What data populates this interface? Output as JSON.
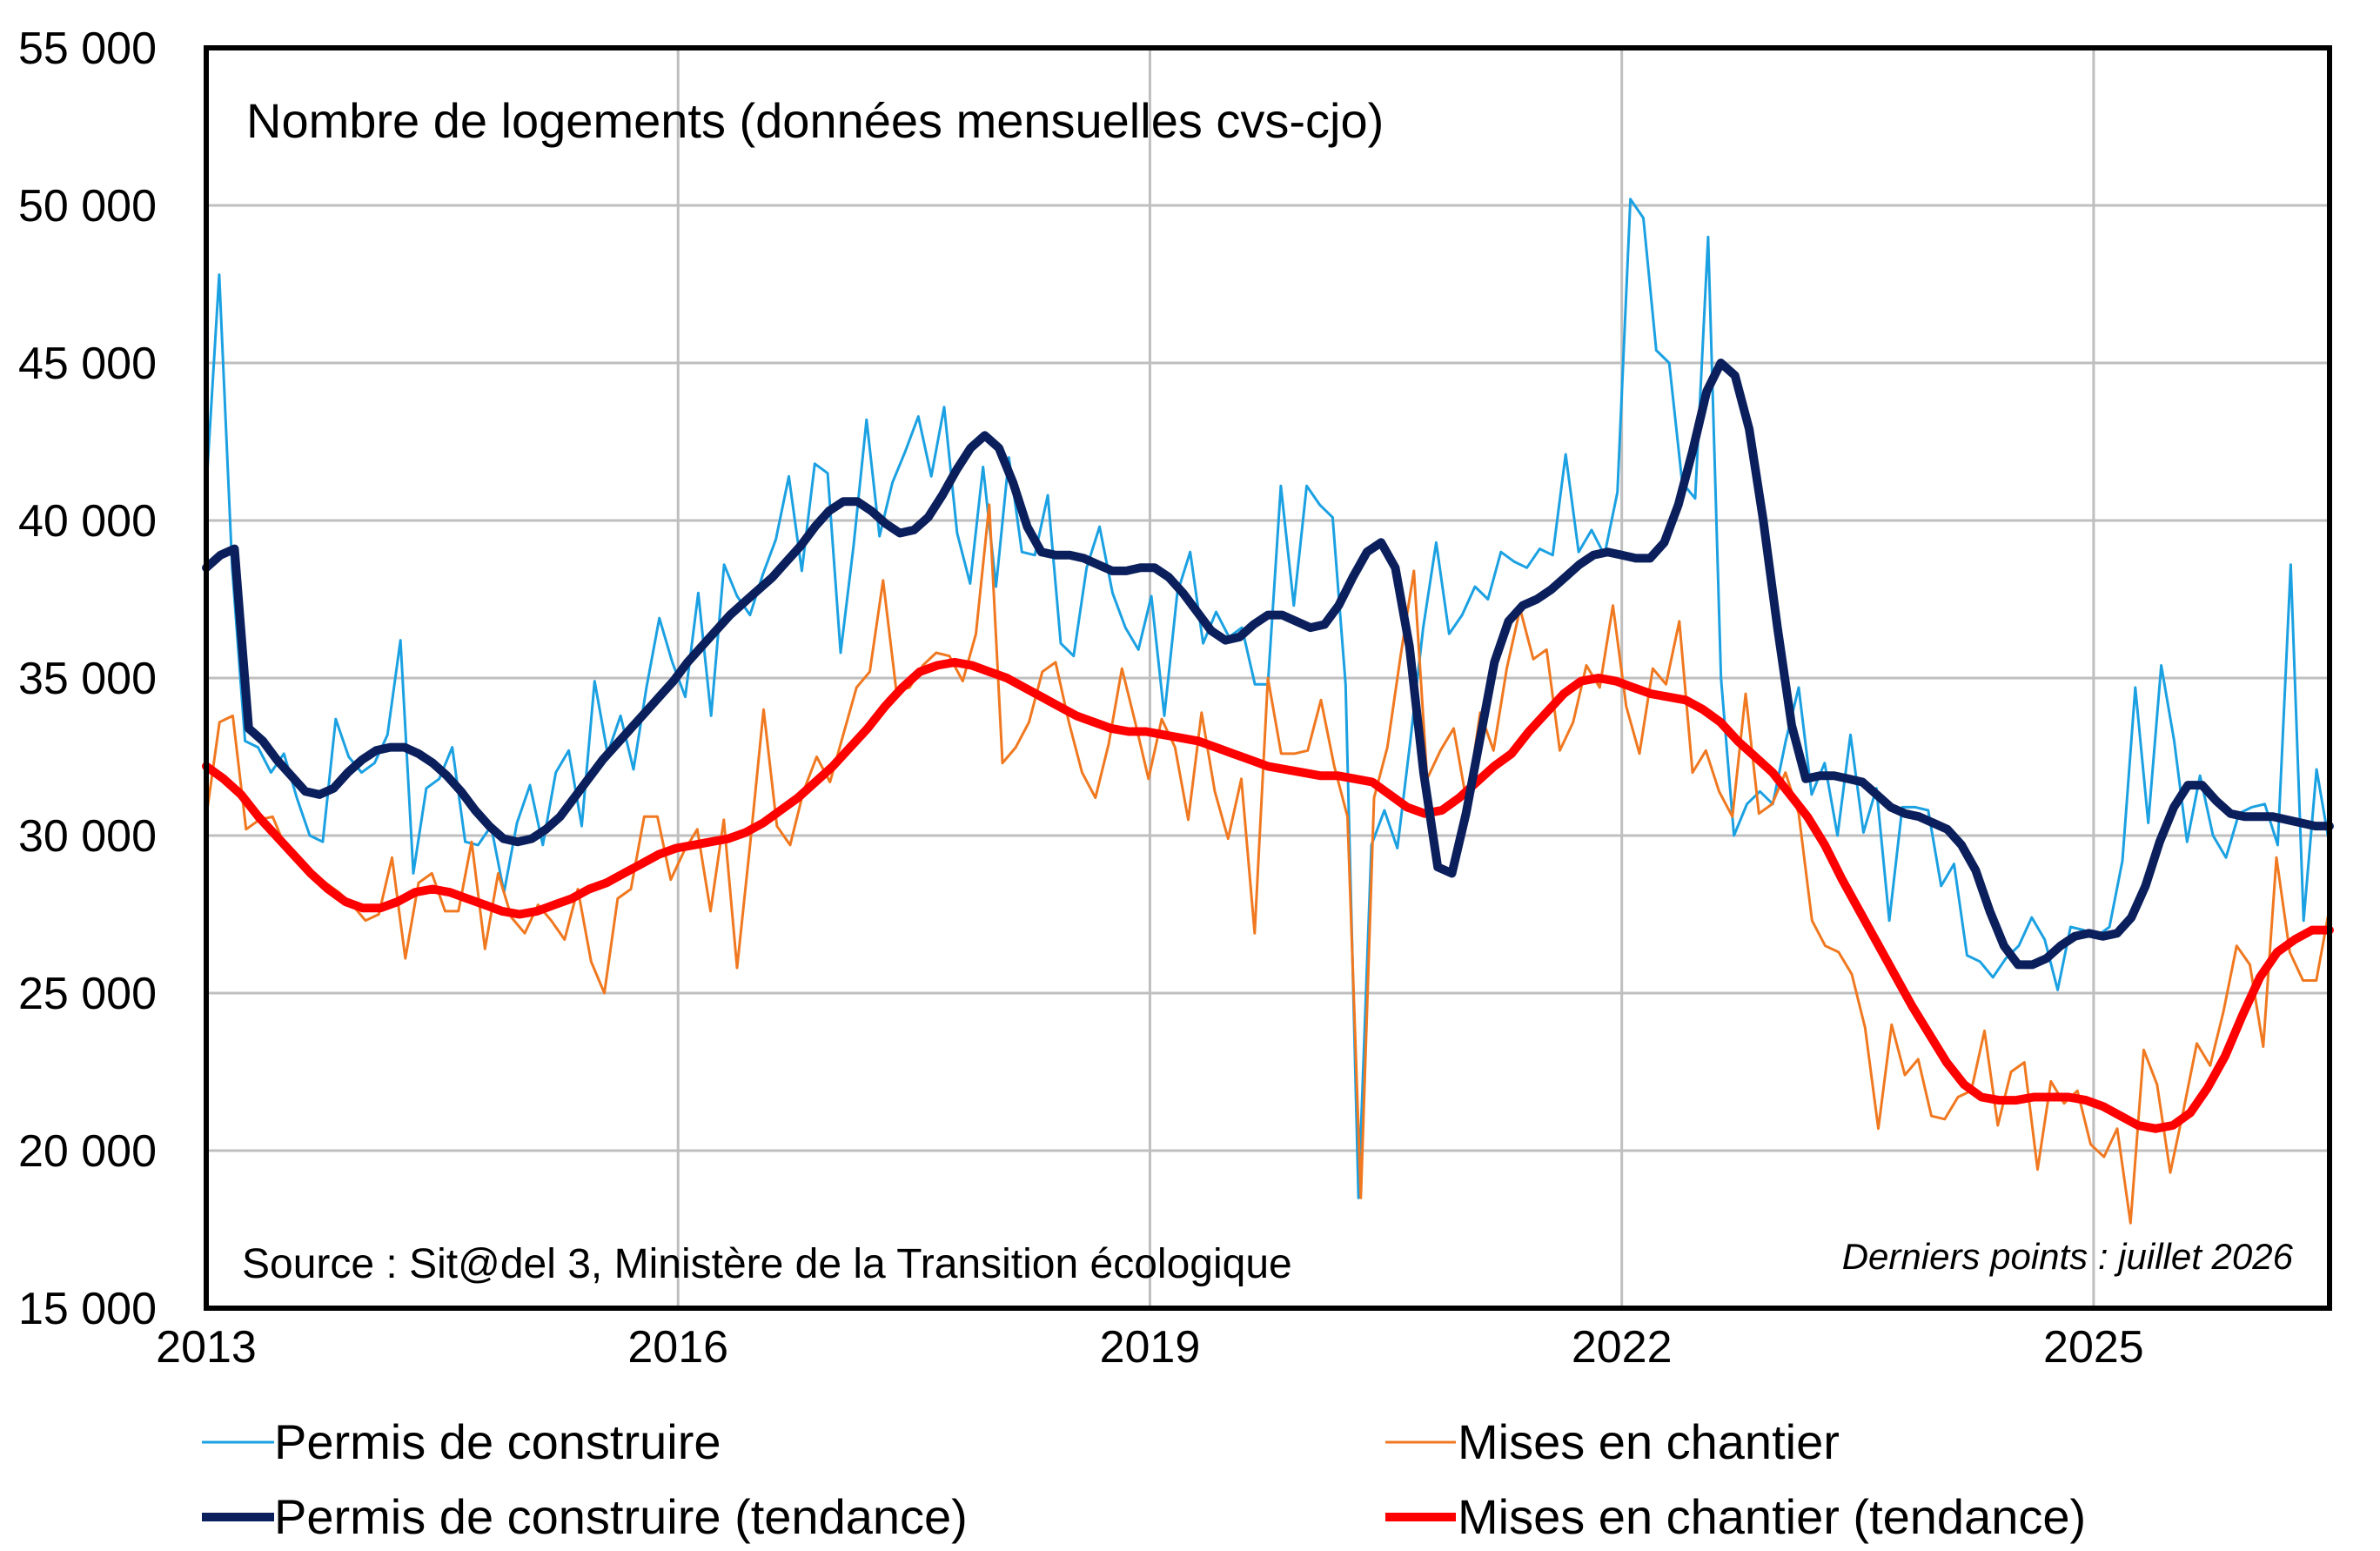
{
  "chart_data": {
    "type": "line",
    "title": "Nombre de logements (données mensuelles cvs-cjo)",
    "source": "Source : Sit@del 3, Ministère de la Transition écologique",
    "note": "Derniers points : juillet  2026",
    "y_ticks": [
      "15 000",
      "20 000",
      "25 000",
      "30 000",
      "35 000",
      "40 000",
      "45 000",
      "50 000",
      "55 000"
    ],
    "x_ticks": [
      "2013",
      "2016",
      "2019",
      "2022",
      "2025"
    ],
    "ylim": [
      15000,
      55000
    ],
    "x_start": "2013-01",
    "x_end": "2026-07",
    "grid": true,
    "legend_position": "bottom",
    "colors": {
      "permis": "#1ba1e2",
      "mises": "#f07820",
      "permis_tendance": "#0b1f5c",
      "mises_tendance": "#ff0000"
    },
    "series": [
      {
        "name": "Permis de construire",
        "key": "permis",
        "values": [
          41000,
          47800,
          38500,
          33000,
          32800,
          32000,
          32600,
          31200,
          30000,
          29800,
          33700,
          32500,
          32000,
          32300,
          33200,
          36200,
          28800,
          31500,
          31800,
          32800,
          29800,
          29700,
          30300,
          28200,
          30400,
          31600,
          29700,
          32000,
          32700,
          30300,
          34900,
          32600,
          33800,
          32100,
          34700,
          36900,
          35500,
          34400,
          37700,
          33800,
          38600,
          37600,
          37000,
          38300,
          39400,
          41400,
          38400,
          41800,
          41500,
          35800,
          39200,
          43200,
          39500,
          41200,
          42200,
          43300,
          41400,
          43600,
          39600,
          38000,
          41700,
          37900,
          42000,
          39000,
          38900,
          40800,
          36100,
          35700,
          38500,
          39800,
          37700,
          36600,
          35900,
          37600,
          33800,
          37700,
          39000,
          36100,
          37100,
          36300,
          36600,
          34800,
          34800,
          41100,
          37300,
          41100,
          40500,
          40100,
          34800,
          18500,
          29700,
          30800,
          29600,
          33000,
          36600,
          39300,
          36400,
          37000,
          37900,
          37500,
          39000,
          38700,
          38500,
          39100,
          38900,
          42100,
          39000,
          39700,
          38900,
          40900,
          50200,
          49600,
          45400,
          45000,
          41200,
          40700,
          49000,
          35000,
          30000,
          31000,
          31400,
          31000,
          33000,
          34700,
          31300,
          32300,
          30000,
          33200,
          30100,
          31500,
          27300,
          30900,
          30900,
          30800,
          28400,
          29100,
          26200,
          26000,
          25500,
          26100,
          26500,
          27400,
          26700,
          25100,
          27100,
          27000,
          26800,
          27100,
          29200,
          34700,
          30400,
          35400,
          33000,
          29800,
          31900,
          30000,
          29300,
          30700,
          30900,
          31000,
          29700,
          38600,
          27300,
          32100,
          29700
        ]
      },
      {
        "name": "Mises en chantier",
        "key": "mises",
        "values": [
          30600,
          33600,
          33800,
          30200,
          30500,
          30600,
          29600,
          29300,
          28800,
          28500,
          28200,
          27800,
          27300,
          27500,
          29300,
          26100,
          28500,
          28800,
          27600,
          27600,
          29800,
          26400,
          28800,
          27400,
          26900,
          27800,
          27300,
          26700,
          28300,
          26000,
          25000,
          28000,
          28300,
          30600,
          30600,
          28600,
          29500,
          30200,
          27600,
          30500,
          25800,
          29800,
          34000,
          30300,
          29700,
          31400,
          32500,
          31700,
          33200,
          34700,
          35200,
          38100,
          34600,
          34700,
          35400,
          35800,
          35700,
          34900,
          36400,
          40500,
          32300,
          32800,
          33600,
          35200,
          35500,
          33600,
          32000,
          31200,
          32900,
          35300,
          33600,
          31800,
          33700,
          32800,
          30500,
          33900,
          31400,
          29900,
          31800,
          26900,
          35000,
          32600,
          32600,
          32700,
          34300,
          32200,
          30600,
          18500,
          31200,
          32800,
          35700,
          38400,
          31800,
          32700,
          33400,
          31000,
          33900,
          32700,
          35300,
          37200,
          35600,
          35900,
          32700,
          33600,
          35400,
          34700,
          37300,
          34100,
          32600,
          35300,
          34800,
          36800,
          32000,
          32700,
          31400,
          30600,
          34500,
          30700,
          31000,
          32000,
          30700,
          27300,
          26500,
          26300,
          25600,
          23900,
          20700,
          24000,
          22400,
          22900,
          21100,
          21000,
          21700,
          21900,
          23800,
          20800,
          22500,
          22800,
          19400,
          22200,
          21500,
          21900,
          20200,
          19800,
          20700,
          17700,
          23200,
          22100,
          19300,
          21300,
          23400,
          22700,
          24400,
          26500,
          25900,
          23300,
          29300,
          26300,
          25400,
          25400,
          27700
        ]
      },
      {
        "name": "Permis de construire (tendance)",
        "key": "permis_tendance",
        "values": [
          38500,
          38900,
          39100,
          33400,
          33000,
          32400,
          31900,
          31400,
          31300,
          31500,
          32000,
          32400,
          32700,
          32800,
          32800,
          32600,
          32300,
          31900,
          31400,
          30800,
          30300,
          29900,
          29800,
          29900,
          30200,
          30600,
          31200,
          31800,
          32400,
          32900,
          33400,
          33900,
          34400,
          34900,
          35500,
          36000,
          36500,
          37000,
          37400,
          37800,
          38200,
          38700,
          39200,
          39800,
          40300,
          40600,
          40600,
          40300,
          39900,
          39600,
          39700,
          40100,
          40800,
          41600,
          42300,
          42700,
          42300,
          41200,
          39800,
          39000,
          38900,
          38900,
          38800,
          38600,
          38400,
          38400,
          38500,
          38500,
          38200,
          37700,
          37100,
          36500,
          36200,
          36300,
          36700,
          37000,
          37000,
          36800,
          36600,
          36700,
          37300,
          38200,
          39000,
          39300,
          38500,
          36000,
          32000,
          29000,
          28800,
          30700,
          33100,
          35500,
          36800,
          37300,
          37500,
          37800,
          38200,
          38600,
          38900,
          39000,
          38900,
          38800,
          38800,
          39300,
          40500,
          42200,
          44100,
          45000,
          44600,
          42900,
          40000,
          36600,
          33500,
          31800,
          31900,
          31900,
          31800,
          31700,
          31300,
          30900,
          30700,
          30600,
          30400,
          30200,
          29700,
          28900,
          27600,
          26500,
          25900,
          25900,
          26100,
          26500,
          26800,
          26900,
          26800,
          26900,
          27400,
          28400,
          29800,
          30900,
          31600,
          31600,
          31100,
          30700,
          30600,
          30600,
          30600,
          30500,
          30400,
          30300,
          30300
        ]
      },
      {
        "name": "Mises en chantier (tendance)",
        "key": "mises_tendance",
        "values": [
          32200,
          31800,
          31300,
          30600,
          30000,
          29400,
          28800,
          28300,
          27900,
          27700,
          27700,
          27900,
          28200,
          28300,
          28200,
          28000,
          27800,
          27600,
          27500,
          27600,
          27800,
          28000,
          28300,
          28500,
          28800,
          29100,
          29400,
          29600,
          29700,
          29800,
          29900,
          30100,
          30400,
          30800,
          31200,
          31700,
          32200,
          32800,
          33400,
          34100,
          34700,
          35200,
          35400,
          35500,
          35400,
          35200,
          35000,
          34700,
          34400,
          34100,
          33800,
          33600,
          33400,
          33300,
          33300,
          33200,
          33100,
          33000,
          32800,
          32600,
          32400,
          32200,
          32100,
          32000,
          31900,
          31900,
          31800,
          31700,
          31300,
          30900,
          30700,
          30800,
          31200,
          31700,
          32200,
          32600,
          33300,
          33900,
          34500,
          34900,
          35000,
          34900,
          34700,
          34500,
          34400,
          34300,
          34000,
          33600,
          33000,
          32500,
          32000,
          31300,
          30600,
          29700,
          28600,
          27600,
          26600,
          25600,
          24600,
          23700,
          22800,
          22100,
          21700,
          21600,
          21600,
          21700,
          21700,
          21700,
          21600,
          21400,
          21100,
          20800,
          20700,
          20800,
          21200,
          22000,
          23000,
          24300,
          25500,
          26300,
          26700,
          27000,
          27000
        ]
      }
    ]
  },
  "legend": [
    {
      "key": "permis",
      "label": "Permis de construire"
    },
    {
      "key": "mises",
      "label": "Mises en chantier"
    },
    {
      "key": "permis_tendance",
      "label": "Permis de construire (tendance)"
    },
    {
      "key": "mises_tendance",
      "label": "Mises en chantier (tendance)"
    }
  ]
}
